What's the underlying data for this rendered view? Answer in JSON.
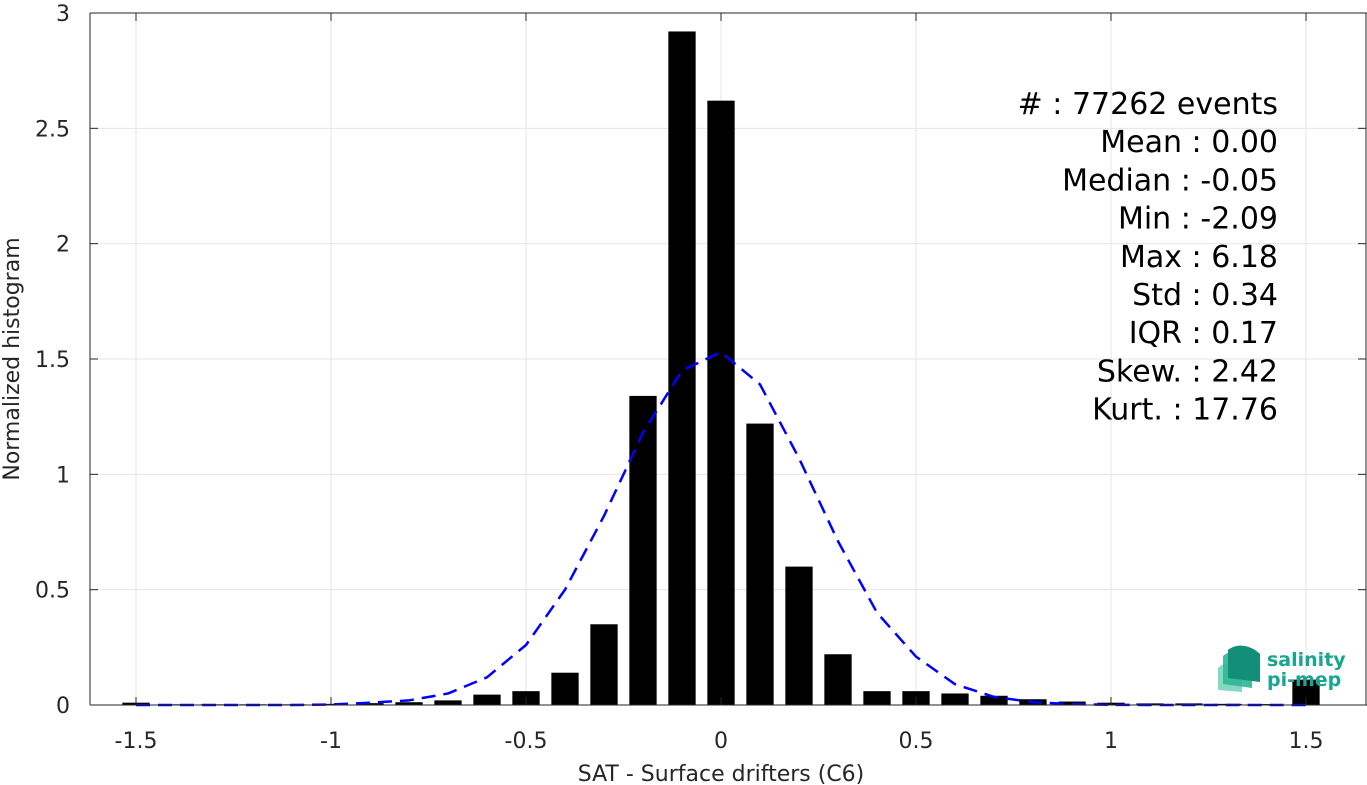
{
  "chart_data": {
    "type": "bar",
    "xlabel": "SAT - Surface drifters (C6)",
    "ylabel": "Normalized histogram",
    "xlim": [
      -1.62,
      1.62
    ],
    "ylim": [
      0,
      3
    ],
    "grid": true,
    "x_ticks": [
      -1.5,
      -1,
      -0.5,
      0,
      0.5,
      1,
      1.5
    ],
    "x_tick_labels": [
      "-1.5",
      "-1",
      "-0.5",
      "0",
      "0.5",
      "1",
      "1.5"
    ],
    "y_ticks": [
      0,
      0.5,
      1,
      1.5,
      2,
      2.5,
      3
    ],
    "y_tick_labels": [
      "0",
      "0.5",
      "1",
      "1.5",
      "2",
      "2.5",
      "3"
    ],
    "bar_width": 0.07,
    "series": [
      {
        "type": "bar",
        "color": "#000000",
        "x": [
          -1.5,
          -1.4,
          -1.3,
          -1.2,
          -1.1,
          -1.0,
          -0.9,
          -0.8,
          -0.7,
          -0.6,
          -0.5,
          -0.4,
          -0.3,
          -0.2,
          -0.1,
          0.0,
          0.1,
          0.2,
          0.3,
          0.4,
          0.5,
          0.6,
          0.7,
          0.8,
          0.9,
          1.0,
          1.1,
          1.2,
          1.3,
          1.4,
          1.5
        ],
        "values": [
          0.01,
          0.003,
          0.003,
          0.003,
          0.003,
          0.005,
          0.008,
          0.012,
          0.02,
          0.045,
          0.06,
          0.14,
          0.35,
          1.34,
          2.92,
          2.62,
          1.22,
          0.6,
          0.22,
          0.06,
          0.06,
          0.05,
          0.04,
          0.025,
          0.015,
          0.01,
          0.007,
          0.007,
          0.005,
          0.004,
          0.11
        ]
      },
      {
        "type": "line",
        "style": "dashed",
        "color": "#0000ff",
        "x": [
          -1.5,
          -1.4,
          -1.3,
          -1.2,
          -1.1,
          -1.0,
          -0.9,
          -0.8,
          -0.7,
          -0.6,
          -0.5,
          -0.4,
          -0.3,
          -0.2,
          -0.1,
          0.0,
          0.1,
          0.2,
          0.3,
          0.4,
          0.5,
          0.6,
          0.7,
          0.8,
          0.9,
          1.0,
          1.1,
          1.2,
          1.3,
          1.4,
          1.5
        ],
        "values": [
          0.0,
          0.0,
          0.0,
          0.0,
          0.0,
          0.002,
          0.01,
          0.02,
          0.05,
          0.12,
          0.26,
          0.5,
          0.82,
          1.18,
          1.45,
          1.53,
          1.39,
          1.07,
          0.71,
          0.4,
          0.21,
          0.09,
          0.035,
          0.012,
          0.004,
          0.001,
          0.0,
          0.0,
          0.0,
          0.0,
          0.0
        ]
      }
    ],
    "stats": [
      "#  : 77262 events",
      "Mean : 0.00",
      "Median : -0.05",
      "Min : -2.09",
      "Max : 6.18",
      "Std : 0.34",
      "IQR : 0.17",
      "Skew. : 2.42",
      "Kurt. : 17.76"
    ]
  },
  "logo": {
    "line1": "salinity",
    "line2": "pi-mep",
    "color": "#1aa58e"
  }
}
